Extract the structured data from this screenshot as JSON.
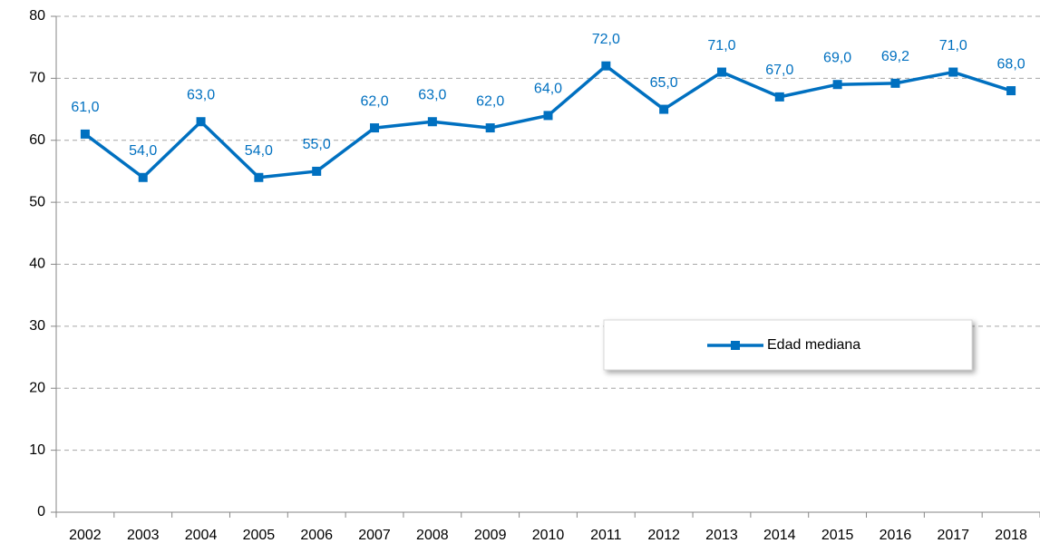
{
  "chart_data": {
    "type": "line",
    "categories": [
      "2002",
      "2003",
      "2004",
      "2005",
      "2006",
      "2007",
      "2008",
      "2009",
      "2010",
      "2011",
      "2012",
      "2013",
      "2014",
      "2015",
      "2016",
      "2017",
      "2018"
    ],
    "series": [
      {
        "name": "Edad mediana",
        "color": "#0070c0",
        "values": [
          61,
          54,
          63,
          54,
          55,
          62,
          63,
          62,
          64,
          72,
          65,
          71,
          67,
          69,
          69.2,
          71,
          68
        ],
        "value_labels": [
          "61,0",
          "54,0",
          "63,0",
          "54,0",
          "55,0",
          "62,0",
          "63,0",
          "62,0",
          "64,0",
          "72,0",
          "65,0",
          "71,0",
          "67,0",
          "69,0",
          "69,2",
          "71,0",
          "68,0"
        ]
      }
    ],
    "ylim": [
      0,
      80
    ],
    "yticks": [
      0,
      10,
      20,
      30,
      40,
      50,
      60,
      70,
      80
    ],
    "grid": true
  }
}
